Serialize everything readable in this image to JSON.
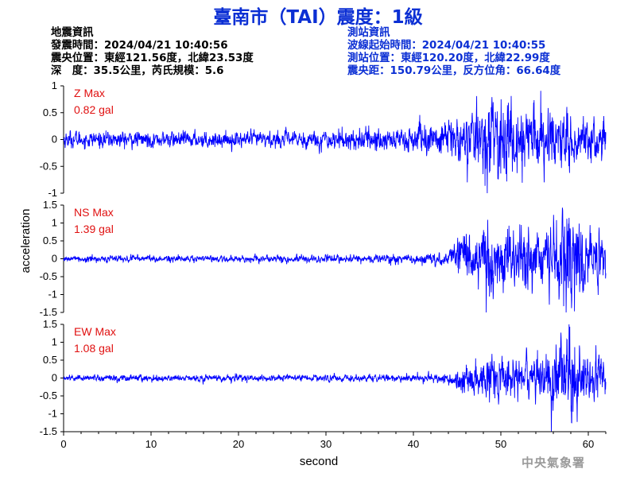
{
  "title": "臺南市（TAI）震度：1級",
  "earthquake_info": {
    "heading": "地震資訊",
    "origin_time": "發震時間：2024/04/21 10:40:56",
    "epicenter": "震央位置：東經121.56度，北緯23.53度",
    "depth_magnitude": "深　度：35.5公里，芮氏規模：5.6"
  },
  "station_info": {
    "heading": "測站資訊",
    "wave_start": "波線起始時間：2024/04/21 10:40:55",
    "station_location": "測站位置：東經120.20度，北緯22.99度",
    "distance_azimuth": "震央距：150.79公里，反方位角：66.64度"
  },
  "agency": "中央氣象署",
  "colors": {
    "title": "#0b2fd4",
    "trace": "#0000ff",
    "max_label": "#e01010",
    "agency": "#9a9a9a"
  },
  "chart_data": [
    {
      "type": "line",
      "channel": "Z",
      "label": "Z Max",
      "max_text": "0.82 gal",
      "max": 0.82,
      "ylim": [
        -1,
        1
      ],
      "yticks": [
        "1",
        "0.5",
        "0",
        "-0.5",
        "-1"
      ],
      "envelope": {
        "t": [
          0,
          10,
          20,
          30,
          35,
          40,
          45,
          50,
          55,
          60,
          62
        ],
        "amp": [
          0.12,
          0.11,
          0.11,
          0.13,
          0.17,
          0.2,
          0.3,
          0.62,
          0.42,
          0.33,
          0.3
        ]
      }
    },
    {
      "type": "line",
      "channel": "NS",
      "label": "NS Max",
      "max_text": "1.39 gal",
      "max": 1.39,
      "ylim": [
        -1.5,
        1.5
      ],
      "yticks": [
        "1.5",
        "1",
        "0.5",
        "0",
        "-0.5",
        "-1",
        "-1.5"
      ],
      "envelope": {
        "t": [
          0,
          10,
          20,
          30,
          40,
          44,
          46,
          50,
          55,
          57.5,
          60,
          62
        ],
        "amp": [
          0.07,
          0.07,
          0.07,
          0.08,
          0.1,
          0.15,
          0.7,
          0.7,
          0.6,
          1.2,
          0.7,
          0.45
        ]
      }
    },
    {
      "type": "line",
      "channel": "EW",
      "label": "EW Max",
      "max_text": "1.08 gal",
      "max": 1.08,
      "ylim": [
        -1.5,
        1.5
      ],
      "yticks": [
        "1.5",
        "1",
        "0.5",
        "0",
        "-0.5",
        "-1",
        "-1.5"
      ],
      "envelope": {
        "t": [
          0,
          10,
          20,
          30,
          40,
          44,
          46,
          50,
          55,
          58,
          60,
          62
        ],
        "amp": [
          0.07,
          0.07,
          0.07,
          0.07,
          0.08,
          0.1,
          0.35,
          0.5,
          0.5,
          0.95,
          0.6,
          0.45
        ]
      }
    }
  ],
  "x_axis": {
    "label": "second",
    "xlim": [
      0,
      62
    ],
    "ticks": [
      "0",
      "10",
      "20",
      "30",
      "40",
      "50",
      "60"
    ]
  },
  "y_axis": {
    "label": "acceleration"
  }
}
